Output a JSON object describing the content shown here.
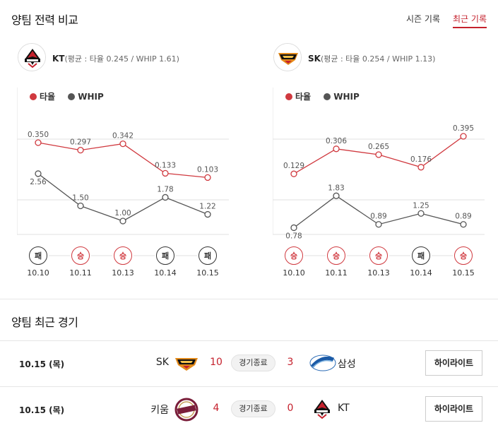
{
  "header": {
    "title": "양팀 전력 비교",
    "tabs": [
      {
        "label": "시즌 기록",
        "active": false
      },
      {
        "label": "최근 기록",
        "active": true
      }
    ]
  },
  "colors": {
    "accent": "#c5212d",
    "batting_line": "#d0393f",
    "whip_line": "#555555",
    "win": "#d0393f",
    "loss": "#333333"
  },
  "teams": [
    {
      "name": "KT",
      "summary": "(평균 : 타율 0.245 / WHIP 1.61)",
      "logo": "kt-wiz-logo",
      "chart_data": {
        "type": "line",
        "legend": [
          "타율",
          "WHIP"
        ],
        "x": [
          "10.10",
          "10.11",
          "10.13",
          "10.14",
          "10.15"
        ],
        "results": [
          "패",
          "승",
          "승",
          "패",
          "패"
        ],
        "series": [
          {
            "name": "타율",
            "values": [
              0.35,
              0.297,
              0.342,
              0.133,
              0.103
            ],
            "labels": [
              "0.350",
              "0.297",
              "0.342",
              "0.133",
              "0.103"
            ]
          },
          {
            "name": "WHIP",
            "values": [
              2.56,
              1.5,
              1.0,
              1.78,
              1.22
            ],
            "labels": [
              "2.56",
              "1.50",
              "1.00",
              "1.78",
              "1.22"
            ]
          }
        ]
      }
    },
    {
      "name": "SK",
      "summary": "(평균 : 타율 0.254 / WHIP 1.13)",
      "logo": "sk-wyverns-logo",
      "chart_data": {
        "type": "line",
        "legend": [
          "타율",
          "WHIP"
        ],
        "x": [
          "10.10",
          "10.11",
          "10.13",
          "10.14",
          "10.15"
        ],
        "results": [
          "승",
          "승",
          "승",
          "패",
          "승"
        ],
        "series": [
          {
            "name": "타율",
            "values": [
              0.129,
              0.306,
              0.265,
              0.176,
              0.395
            ],
            "labels": [
              "0.129",
              "0.306",
              "0.265",
              "0.176",
              "0.395"
            ]
          },
          {
            "name": "WHIP",
            "values": [
              0.78,
              1.83,
              0.89,
              1.25,
              0.89
            ],
            "labels": [
              "0.78",
              "1.83",
              "0.89",
              "1.25",
              "0.89"
            ]
          }
        ]
      }
    }
  ],
  "recent": {
    "title": "양팀 최근 경기",
    "games": [
      {
        "date": "10.15 (목)",
        "home": "SK",
        "home_logo": "sk-wyverns-logo",
        "home_score": "10",
        "status": "경기종료",
        "away_score": "3",
        "away": "삼성",
        "away_logo": "samsung-lions-logo",
        "button": "하이라이트"
      },
      {
        "date": "10.15 (목)",
        "home": "키움",
        "home_logo": "kiwoom-heroes-logo",
        "home_score": "4",
        "status": "경기종료",
        "away_score": "0",
        "away": "KT",
        "away_logo": "kt-wiz-logo",
        "button": "하이라이트"
      }
    ]
  }
}
